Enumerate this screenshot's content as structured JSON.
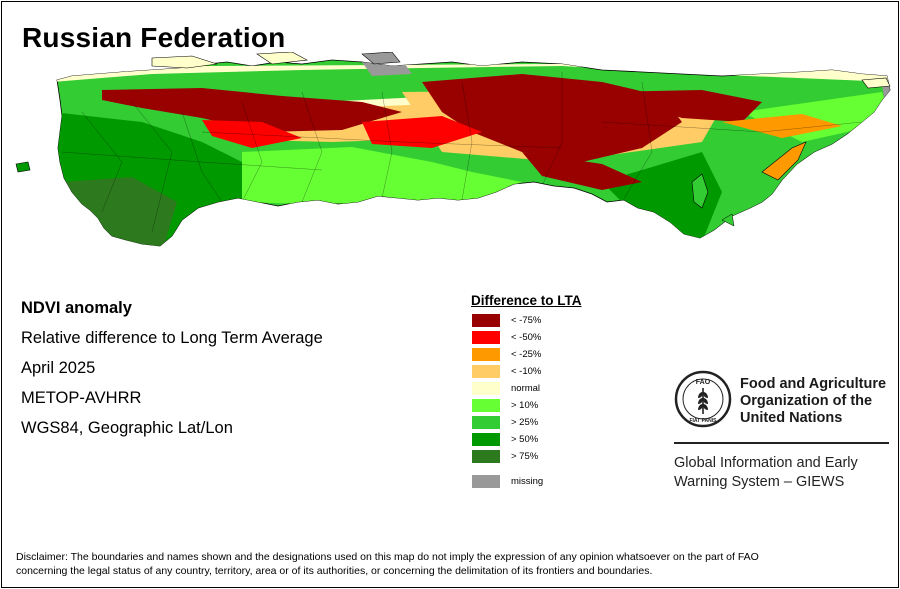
{
  "title": "Russian Federation",
  "info": {
    "line1": "NDVI anomaly",
    "line2": "Relative difference to Long Term Average",
    "line3": "April 2025",
    "line4": "METOP-AVHRR",
    "line5": "WGS84, Geographic Lat/Lon"
  },
  "legend": {
    "title": "Difference to LTA",
    "items": [
      {
        "label": "< -75%",
        "color": "#990000"
      },
      {
        "label": "< -50%",
        "color": "#ff0000"
      },
      {
        "label": "< -25%",
        "color": "#ff9900"
      },
      {
        "label": "< -10%",
        "color": "#ffcc66"
      },
      {
        "label": "normal",
        "color": "#ffffcc"
      },
      {
        "label": "> 10%",
        "color": "#66ff33"
      },
      {
        "label": "> 25%",
        "color": "#33cc33"
      },
      {
        "label": "> 50%",
        "color": "#009900"
      },
      {
        "label": "> 75%",
        "color": "#2d7a1e"
      }
    ],
    "missing": {
      "label": "missing",
      "color": "#999999"
    }
  },
  "fao": {
    "name_line1": "Food and Agriculture",
    "name_line2": "Organization of the",
    "name_line3": "United Nations",
    "logo_text_top": "FAO",
    "logo_text_bottom": "FIAT PANIS",
    "icon": "fao-emblem-icon"
  },
  "giews": {
    "line1": "Global Information and Early",
    "line2": "Warning System – GIEWS"
  },
  "disclaimer": {
    "line1": "Disclaimer: The boundaries and names shown and the designations used on this map do not imply the expression of any opinion whatsoever on the part of FAO",
    "line2": "concerning the legal status of any country, territory, area or of its authorities, or concerning the delimitation of its frontiers and boundaries."
  }
}
